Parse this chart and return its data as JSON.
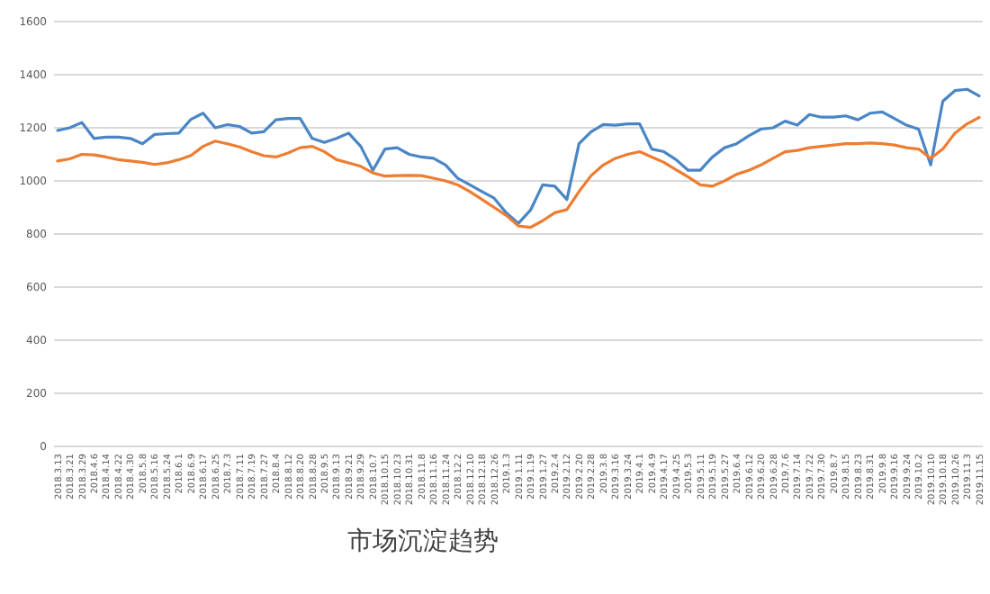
{
  "chart_data": {
    "type": "line",
    "title": "市场沉淀趋势",
    "categories": [
      "2018.3.13",
      "2018.3.21",
      "2018.3.29",
      "2018.4.6",
      "2018.4.14",
      "2018.4.22",
      "2018.4.30",
      "2018.5.8",
      "2018.5.16",
      "2018.5.24",
      "2018.6.1",
      "2018.6.9",
      "2018.6.17",
      "2018.6.25",
      "2018.7.3",
      "2018.7.11",
      "2018.7.19",
      "2018.7.27",
      "2018.8.4",
      "2018.8.12",
      "2018.8.20",
      "2018.8.28",
      "2018.9.5",
      "2018.9.13",
      "2018.9.21",
      "2018.9.29",
      "2018.10.7",
      "2018.10.15",
      "2018.10.23",
      "2018.10.31",
      "2018.11.8",
      "2018.11.16",
      "2018.11.24",
      "2018.12.2",
      "2018.12.10",
      "2018.12.18",
      "2018.12.26",
      "2019.1.3",
      "2019.1.11",
      "2019.1.19",
      "2019.1.27",
      "2019.2.4",
      "2019.2.12",
      "2019.2.20",
      "2019.2.28",
      "2019.3.8",
      "2019.3.16",
      "2019.3.24",
      "2019.4.1",
      "2019.4.9",
      "2019.4.17",
      "2019.4.25",
      "2019.5.3",
      "2019.5.11",
      "2019.5.19",
      "2019.5.27",
      "2019.6.4",
      "2019.6.12",
      "2019.6.20",
      "2019.6.28",
      "2019.7.6",
      "2019.7.14",
      "2019.7.22",
      "2019.7.30",
      "2019.8.7",
      "2019.8.15",
      "2019.8.23",
      "2019.8.31",
      "2019.9.8",
      "2019.9.16",
      "2019.9.24",
      "2019.10.2",
      "2019.10.10",
      "2019.10.18",
      "2019.10.26",
      "2019.11.3",
      "2019.11.15"
    ],
    "series": [
      {
        "color": "#4a86c5",
        "values": [
          1190,
          1200,
          1220,
          1160,
          1165,
          1165,
          1160,
          1140,
          1175,
          1178,
          1180,
          1232,
          1255,
          1200,
          1212,
          1205,
          1180,
          1185,
          1230,
          1235,
          1235,
          1160,
          1145,
          1160,
          1180,
          1130,
          1040,
          1120,
          1125,
          1100,
          1090,
          1085,
          1060,
          1010,
          985,
          960,
          935,
          880,
          840,
          890,
          985,
          980,
          930,
          1140,
          1185,
          1212,
          1210,
          1215,
          1215,
          1120,
          1110,
          1080,
          1040,
          1040,
          1090,
          1125,
          1140,
          1170,
          1195,
          1200,
          1225,
          1210,
          1250,
          1240,
          1240,
          1245,
          1230,
          1255,
          1260,
          1235,
          1210,
          1195,
          1060,
          1300,
          1340,
          1345,
          1320
        ]
      },
      {
        "color": "#ed7d31",
        "values": [
          1075,
          1083,
          1100,
          1098,
          1090,
          1080,
          1075,
          1070,
          1062,
          1068,
          1080,
          1096,
          1130,
          1150,
          1140,
          1128,
          1110,
          1095,
          1090,
          1105,
          1125,
          1130,
          1110,
          1080,
          1068,
          1055,
          1030,
          1018,
          1020,
          1021,
          1020,
          1010,
          1000,
          985,
          960,
          930,
          900,
          870,
          830,
          825,
          850,
          880,
          892,
          960,
          1020,
          1060,
          1085,
          1100,
          1110,
          1090,
          1070,
          1042,
          1015,
          985,
          980,
          1000,
          1025,
          1040,
          1060,
          1085,
          1110,
          1115,
          1125,
          1130,
          1135,
          1140,
          1140,
          1143,
          1140,
          1135,
          1125,
          1120,
          1085,
          1120,
          1180,
          1215,
          1239
        ]
      }
    ],
    "ylim": [
      0,
      1600
    ],
    "yticks": [
      0,
      200,
      400,
      600,
      800,
      1000,
      1200,
      1400,
      1600
    ],
    "grid": "y"
  }
}
